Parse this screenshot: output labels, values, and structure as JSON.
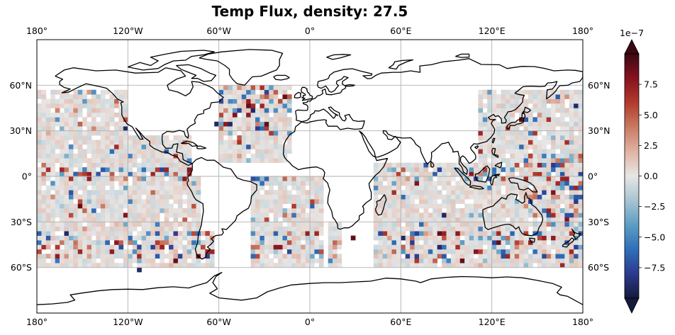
{
  "title": "Temp Flux, density: 27.5",
  "map": {
    "projection": "PlateCarree",
    "lon_range": [
      -180,
      180
    ],
    "lat_range": [
      -90,
      90
    ],
    "gridlines": true,
    "lon_ticks": [
      {
        "lon": -180,
        "label": "180°"
      },
      {
        "lon": -120,
        "label": "120°W"
      },
      {
        "lon": -60,
        "label": "60°W"
      },
      {
        "lon": 0,
        "label": "0°"
      },
      {
        "lon": 60,
        "label": "60°E"
      },
      {
        "lon": 120,
        "label": "120°E"
      },
      {
        "lon": 180,
        "label": "180°"
      }
    ],
    "lat_ticks": [
      {
        "lat": 60,
        "label": "60°N"
      },
      {
        "lat": 30,
        "label": "30°N"
      },
      {
        "lat": 0,
        "label": "0°"
      },
      {
        "lat": -30,
        "label": "30°S"
      },
      {
        "lat": -60,
        "label": "60°S"
      }
    ]
  },
  "colorbar": {
    "colormap": "balance",
    "multiplier_label": "1e−7",
    "range": [
      -10,
      10
    ],
    "extend": "both",
    "ticks": [
      {
        "value": 7.5,
        "label": "7.5"
      },
      {
        "value": 5.0,
        "label": "5.0"
      },
      {
        "value": 2.5,
        "label": "2.5"
      },
      {
        "value": 0.0,
        "label": "0.0"
      },
      {
        "value": -2.5,
        "label": "−2.5"
      },
      {
        "value": -5.0,
        "label": "−5.0"
      },
      {
        "value": -7.5,
        "label": "−7.5"
      }
    ],
    "colors": [
      "#161a3b",
      "#2c3a8f",
      "#2f6fb9",
      "#5c9dc5",
      "#a8c5d1",
      "#e8e6e5",
      "#e0b3a3",
      "#c97a63",
      "#b23a2e",
      "#87121e",
      "#3c0913"
    ]
  },
  "chart_data": {
    "type": "heatmap",
    "title": "Temp Flux, density: 27.5",
    "units_multiplier": "1e-7",
    "cell_size_deg": [
      3,
      3
    ],
    "ocean_mask_regions": [
      {
        "lon": [
          -180,
          -120
        ],
        "lat": [
          -62,
          57
        ]
      },
      {
        "lon": [
          -120,
          -80
        ],
        "lat": [
          -62,
          27
        ]
      },
      {
        "lon": [
          -80,
          -72
        ],
        "lat": [
          -62,
          -2
        ]
      },
      {
        "lon": [
          -72,
          -65
        ],
        "lat": [
          -62,
          -38
        ]
      },
      {
        "lon": [
          -60,
          -12
        ],
        "lat": [
          9,
          60
        ]
      },
      {
        "lon": [
          -40,
          8
        ],
        "lat": [
          -62,
          0
        ]
      },
      {
        "lon": [
          10,
          20
        ],
        "lat": [
          -62,
          -32
        ]
      },
      {
        "lon": [
          40,
          110
        ],
        "lat": [
          -62,
          9
        ]
      },
      {
        "lon": [
          110,
          180
        ],
        "lat": [
          -62,
          57
        ]
      }
    ],
    "notable_values": [
      {
        "lon": -42,
        "lat": 45,
        "value": 9
      },
      {
        "lon": -39,
        "lat": 42,
        "value": -9
      },
      {
        "lon": -51,
        "lat": 39,
        "value": 8
      },
      {
        "lon": -54,
        "lat": 33,
        "value": -9
      },
      {
        "lon": -45,
        "lat": 51,
        "value": -6
      },
      {
        "lon": -33,
        "lat": 45,
        "value": 7
      },
      {
        "lon": -27,
        "lat": 57,
        "value": -4
      },
      {
        "lon": -30,
        "lat": 33,
        "value": 9
      },
      {
        "lon": -36,
        "lat": 30,
        "value": -8
      },
      {
        "lon": -18,
        "lat": 51,
        "value": 9
      },
      {
        "lon": -63,
        "lat": 33,
        "value": -9
      },
      {
        "lon": -150,
        "lat": 0,
        "value": 6
      },
      {
        "lon": -141,
        "lat": 0,
        "value": -7
      },
      {
        "lon": -132,
        "lat": 0,
        "value": 5
      },
      {
        "lon": -120,
        "lat": 0,
        "value": -6
      },
      {
        "lon": -105,
        "lat": 0,
        "value": 7
      },
      {
        "lon": -96,
        "lat": 0,
        "value": -5
      },
      {
        "lon": -165,
        "lat": 0,
        "value": -4
      },
      {
        "lon": -177,
        "lat": 0,
        "value": 5
      },
      {
        "lon": -123,
        "lat": 30,
        "value": -9
      },
      {
        "lon": -153,
        "lat": -21,
        "value": 9
      },
      {
        "lon": -162,
        "lat": -39,
        "value": -9
      },
      {
        "lon": -123,
        "lat": -27,
        "value": 8
      },
      {
        "lon": -90,
        "lat": -57,
        "value": 9
      },
      {
        "lon": -75,
        "lat": -54,
        "value": 9
      },
      {
        "lon": -114,
        "lat": -63,
        "value": -9
      },
      {
        "lon": 27,
        "lat": -42,
        "value": 9
      },
      {
        "lon": 60,
        "lat": -42,
        "value": -9
      },
      {
        "lon": 84,
        "lat": -39,
        "value": 9
      },
      {
        "lon": 84,
        "lat": -48,
        "value": -9
      },
      {
        "lon": 87,
        "lat": -27,
        "value": -9
      },
      {
        "lon": 69,
        "lat": -6,
        "value": 8
      },
      {
        "lon": 57,
        "lat": 0,
        "value": 6
      },
      {
        "lon": 99,
        "lat": -57,
        "value": 9
      },
      {
        "lon": 108,
        "lat": -51,
        "value": 8
      },
      {
        "lon": 123,
        "lat": -45,
        "value": 9
      },
      {
        "lon": 147,
        "lat": 0,
        "value": 6
      },
      {
        "lon": 159,
        "lat": 6,
        "value": -8
      },
      {
        "lon": 165,
        "lat": -3,
        "value": 7
      },
      {
        "lon": 171,
        "lat": -9,
        "value": -7
      },
      {
        "lon": 174,
        "lat": 45,
        "value": -9
      },
      {
        "lon": 138,
        "lat": 36,
        "value": 9
      },
      {
        "lon": 150,
        "lat": -15,
        "value": -7
      },
      {
        "lon": 168,
        "lat": -30,
        "value": 8
      }
    ]
  }
}
